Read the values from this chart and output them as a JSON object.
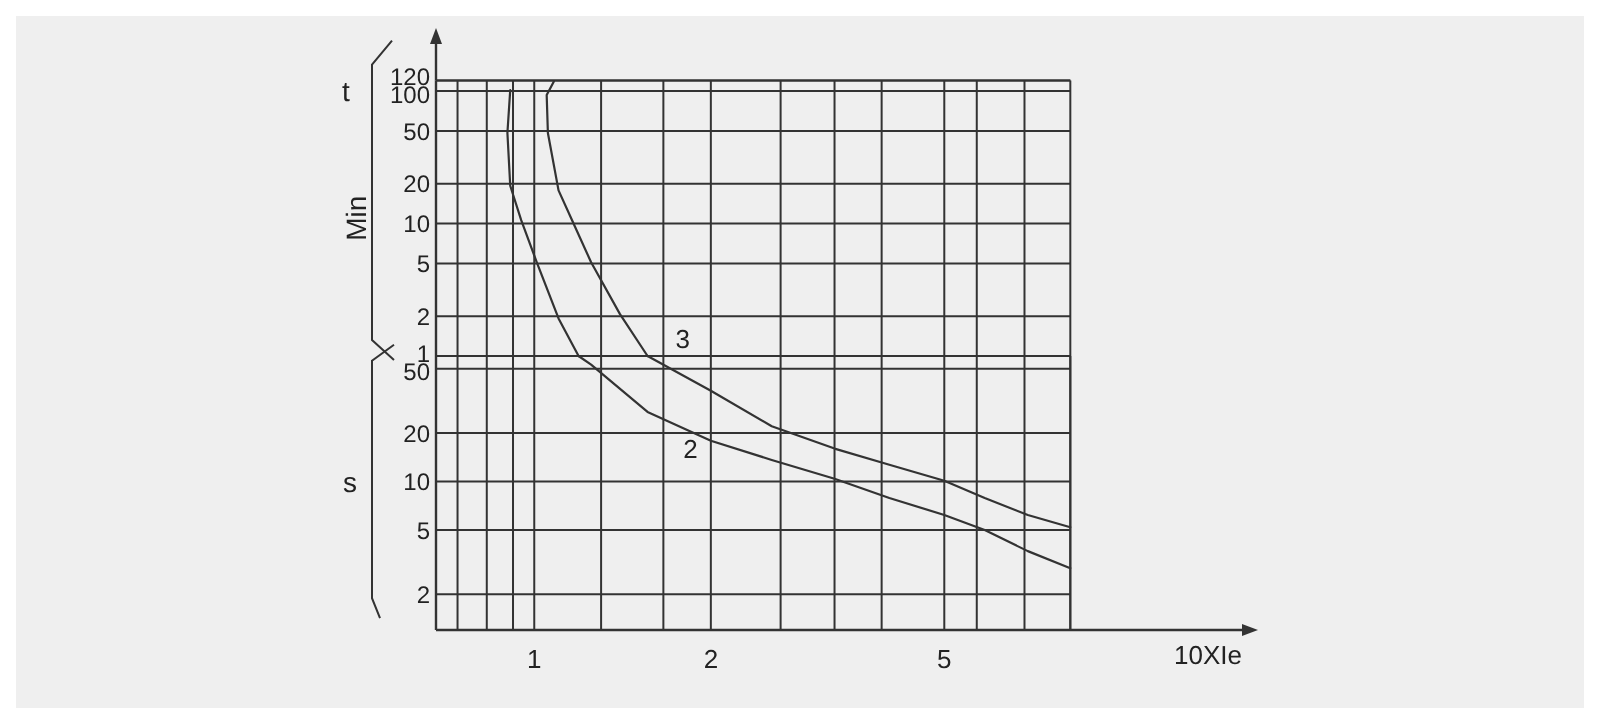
{
  "chart_data": [
    {
      "type": "line",
      "ylabel": "t",
      "annotations": [
        "Min"
      ],
      "log": "xy",
      "grid": true,
      "marker": "none",
      "line_style": "solid",
      "tick_labels": "y",
      "xlim": [
        0.68,
        8.2
      ],
      "xticks": [
        {
          "value": 0.74,
          "label": null
        },
        {
          "value": 0.83,
          "label": null
        },
        {
          "value": 0.92,
          "label": null
        },
        1,
        {
          "value": 1.3,
          "label": null
        },
        {
          "value": 1.66,
          "label": null
        },
        2,
        {
          "value": 2.63,
          "label": null
        },
        {
          "value": 3.25,
          "label": null
        },
        {
          "value": 3.91,
          "label": null
        },
        5,
        {
          "value": 5.68,
          "label": null
        },
        {
          "value": 6.85,
          "label": null
        }
      ],
      "ylim": [
        1,
        120
      ],
      "yticks": [
        120,
        100,
        50,
        20,
        10,
        5,
        2,
        1
      ],
      "series": [
        {
          "color": "#333333",
          "x": [
            0.91,
            0.9,
            0.91,
            0.95,
            1.01,
            1.1,
            1.19
          ],
          "values": [
            101.7,
            48.3,
            19.3,
            10.6,
            5.1,
            1.92,
            1
          ]
        },
        {
          "name": "3",
          "color": "#333333",
          "x": [
            1.08,
            1.05,
            1.055,
            1.1,
            1.16,
            1.25,
            1.4,
            1.56
          ],
          "values": [
            118.3,
            93.3,
            48.3,
            17.8,
            10.6,
            5.1,
            2.07,
            1
          ]
        }
      ]
    },
    {
      "type": "line",
      "xlabel": "10XIe",
      "annotations": [
        "s"
      ],
      "log": "xy",
      "grid": true,
      "marker": "none",
      "line_style": "solid",
      "xlim": [
        0.68,
        16.6
      ],
      "xticks": [
        {
          "value": 0.74,
          "label": null
        },
        {
          "value": 0.83,
          "label": null
        },
        {
          "value": 0.92,
          "label": null
        },
        1,
        {
          "value": 1.3,
          "label": null
        },
        {
          "value": 1.66,
          "label": null
        },
        2,
        {
          "value": 2.63,
          "label": null
        },
        {
          "value": 3.25,
          "label": null
        },
        {
          "value": 3.91,
          "label": null
        },
        5,
        {
          "value": 5.68,
          "label": null
        },
        {
          "value": 6.85,
          "label": null
        },
        {
          "value": 8.2,
          "label": null
        }
      ],
      "ylim": [
        1.2,
        60
      ],
      "yticks": [
        50,
        20,
        10,
        5,
        2
      ],
      "series": [
        {
          "name": "2",
          "color": "#333333",
          "x": [
            1.19,
            1.25,
            1.56,
            2.0,
            2.54,
            3.25,
            4.03,
            5,
            5.86,
            6.94,
            8.2
          ],
          "values": [
            60,
            53,
            27,
            17.9,
            13.6,
            10.4,
            7.9,
            6.2,
            5.0,
            3.7,
            2.9
          ]
        },
        {
          "color": "#333333",
          "x": [
            1.56,
            2.0,
            2.54,
            3.25,
            4.03,
            5,
            5.86,
            6.94,
            8.2
          ],
          "values": [
            60,
            36.5,
            22,
            16,
            12.7,
            10.1,
            7.9,
            6.2,
            5.2
          ]
        }
      ]
    }
  ]
}
